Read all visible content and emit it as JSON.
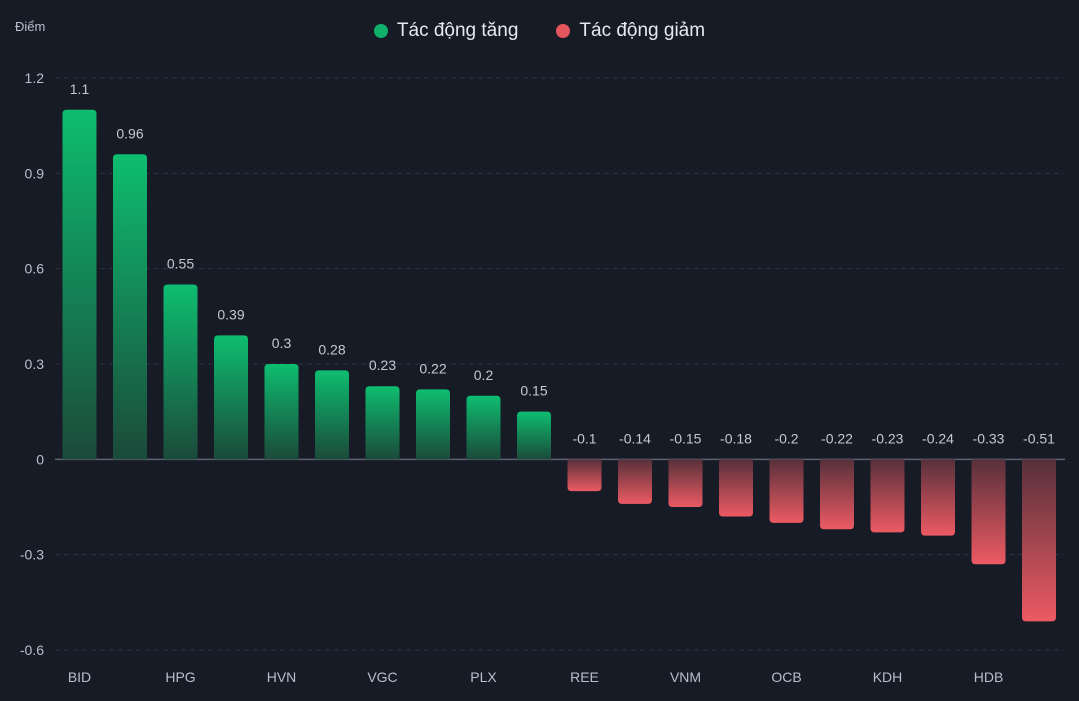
{
  "chart_data": {
    "type": "bar",
    "ylabel": "Điểm",
    "ylim": [
      -0.6,
      1.2
    ],
    "yticks": [
      1.2,
      0.9,
      0.6,
      0.3,
      0,
      -0.3,
      -0.6
    ],
    "grid": true,
    "legend_position": "top-center",
    "series": [
      {
        "name": "Tác động tăng",
        "color": "#10b06a"
      },
      {
        "name": "Tác động giảm",
        "color": "#e5555e"
      }
    ],
    "categories": [
      "BID",
      "",
      "HPG",
      "",
      "HVN",
      "",
      "VGC",
      "",
      "PLX",
      "",
      "REE",
      "",
      "VNM",
      "",
      "OCB",
      "",
      "KDH",
      "",
      "HDB",
      ""
    ],
    "values": [
      1.1,
      0.96,
      0.55,
      0.39,
      0.3,
      0.28,
      0.23,
      0.22,
      0.2,
      0.15,
      -0.1,
      -0.14,
      -0.15,
      -0.18,
      -0.2,
      -0.22,
      -0.23,
      -0.24,
      -0.33,
      -0.51
    ],
    "value_labels": [
      "1.1",
      "0.96",
      "0.55",
      "0.39",
      "0.3",
      "0.28",
      "0.23",
      "0.22",
      "0.2",
      "0.15",
      "-0.1",
      "-0.14",
      "-0.15",
      "-0.18",
      "-0.2",
      "-0.22",
      "-0.23",
      "-0.24",
      "-0.33",
      "-0.51"
    ]
  }
}
